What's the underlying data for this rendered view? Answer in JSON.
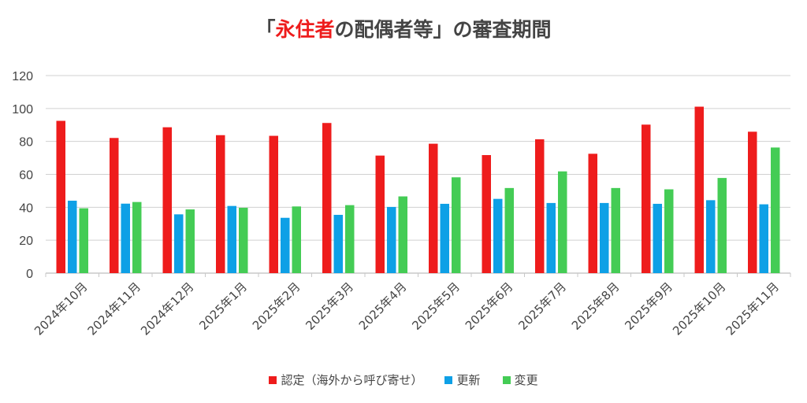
{
  "chart_data": {
    "type": "bar",
    "title_parts": {
      "pre": "「",
      "highlight": "永住者",
      "post": "の配偶者等」の審査期間"
    },
    "highlight_color": "#ee1c1c",
    "xlabel": "",
    "ylabel": "",
    "ylim": [
      0,
      120
    ],
    "yticks": [
      0,
      20,
      40,
      60,
      80,
      100,
      120
    ],
    "grid": true,
    "legend_position": "bottom",
    "categories": [
      "2024年10月",
      "2024年11月",
      "2024年12月",
      "2025年1月",
      "2025年2月",
      "2025年3月",
      "2025年4月",
      "2025年5月",
      "2025年6月",
      "2025年7月",
      "2025年8月",
      "2025年9月",
      "2025年10月",
      "2025年11月"
    ],
    "series": [
      {
        "name": "認定（海外から呼び寄せ）",
        "color": "#ee1c1c",
        "values": [
          92.5,
          82.1,
          88.6,
          83.8,
          83.4,
          91.2,
          71.4,
          78.6,
          71.7,
          81.3,
          72.5,
          90.2,
          101.1,
          85.9
        ]
      },
      {
        "name": "更新",
        "color": "#0ea0e6",
        "values": [
          44.0,
          42.2,
          35.7,
          40.8,
          33.6,
          35.4,
          40.2,
          42.1,
          45.1,
          42.6,
          42.6,
          42.1,
          44.3,
          41.8
        ]
      },
      {
        "name": "変更",
        "color": "#44cc55",
        "values": [
          39.4,
          43.2,
          38.7,
          39.7,
          40.5,
          41.3,
          46.6,
          58.2,
          51.7,
          61.8,
          51.7,
          50.9,
          57.8,
          76.3
        ]
      }
    ]
  }
}
